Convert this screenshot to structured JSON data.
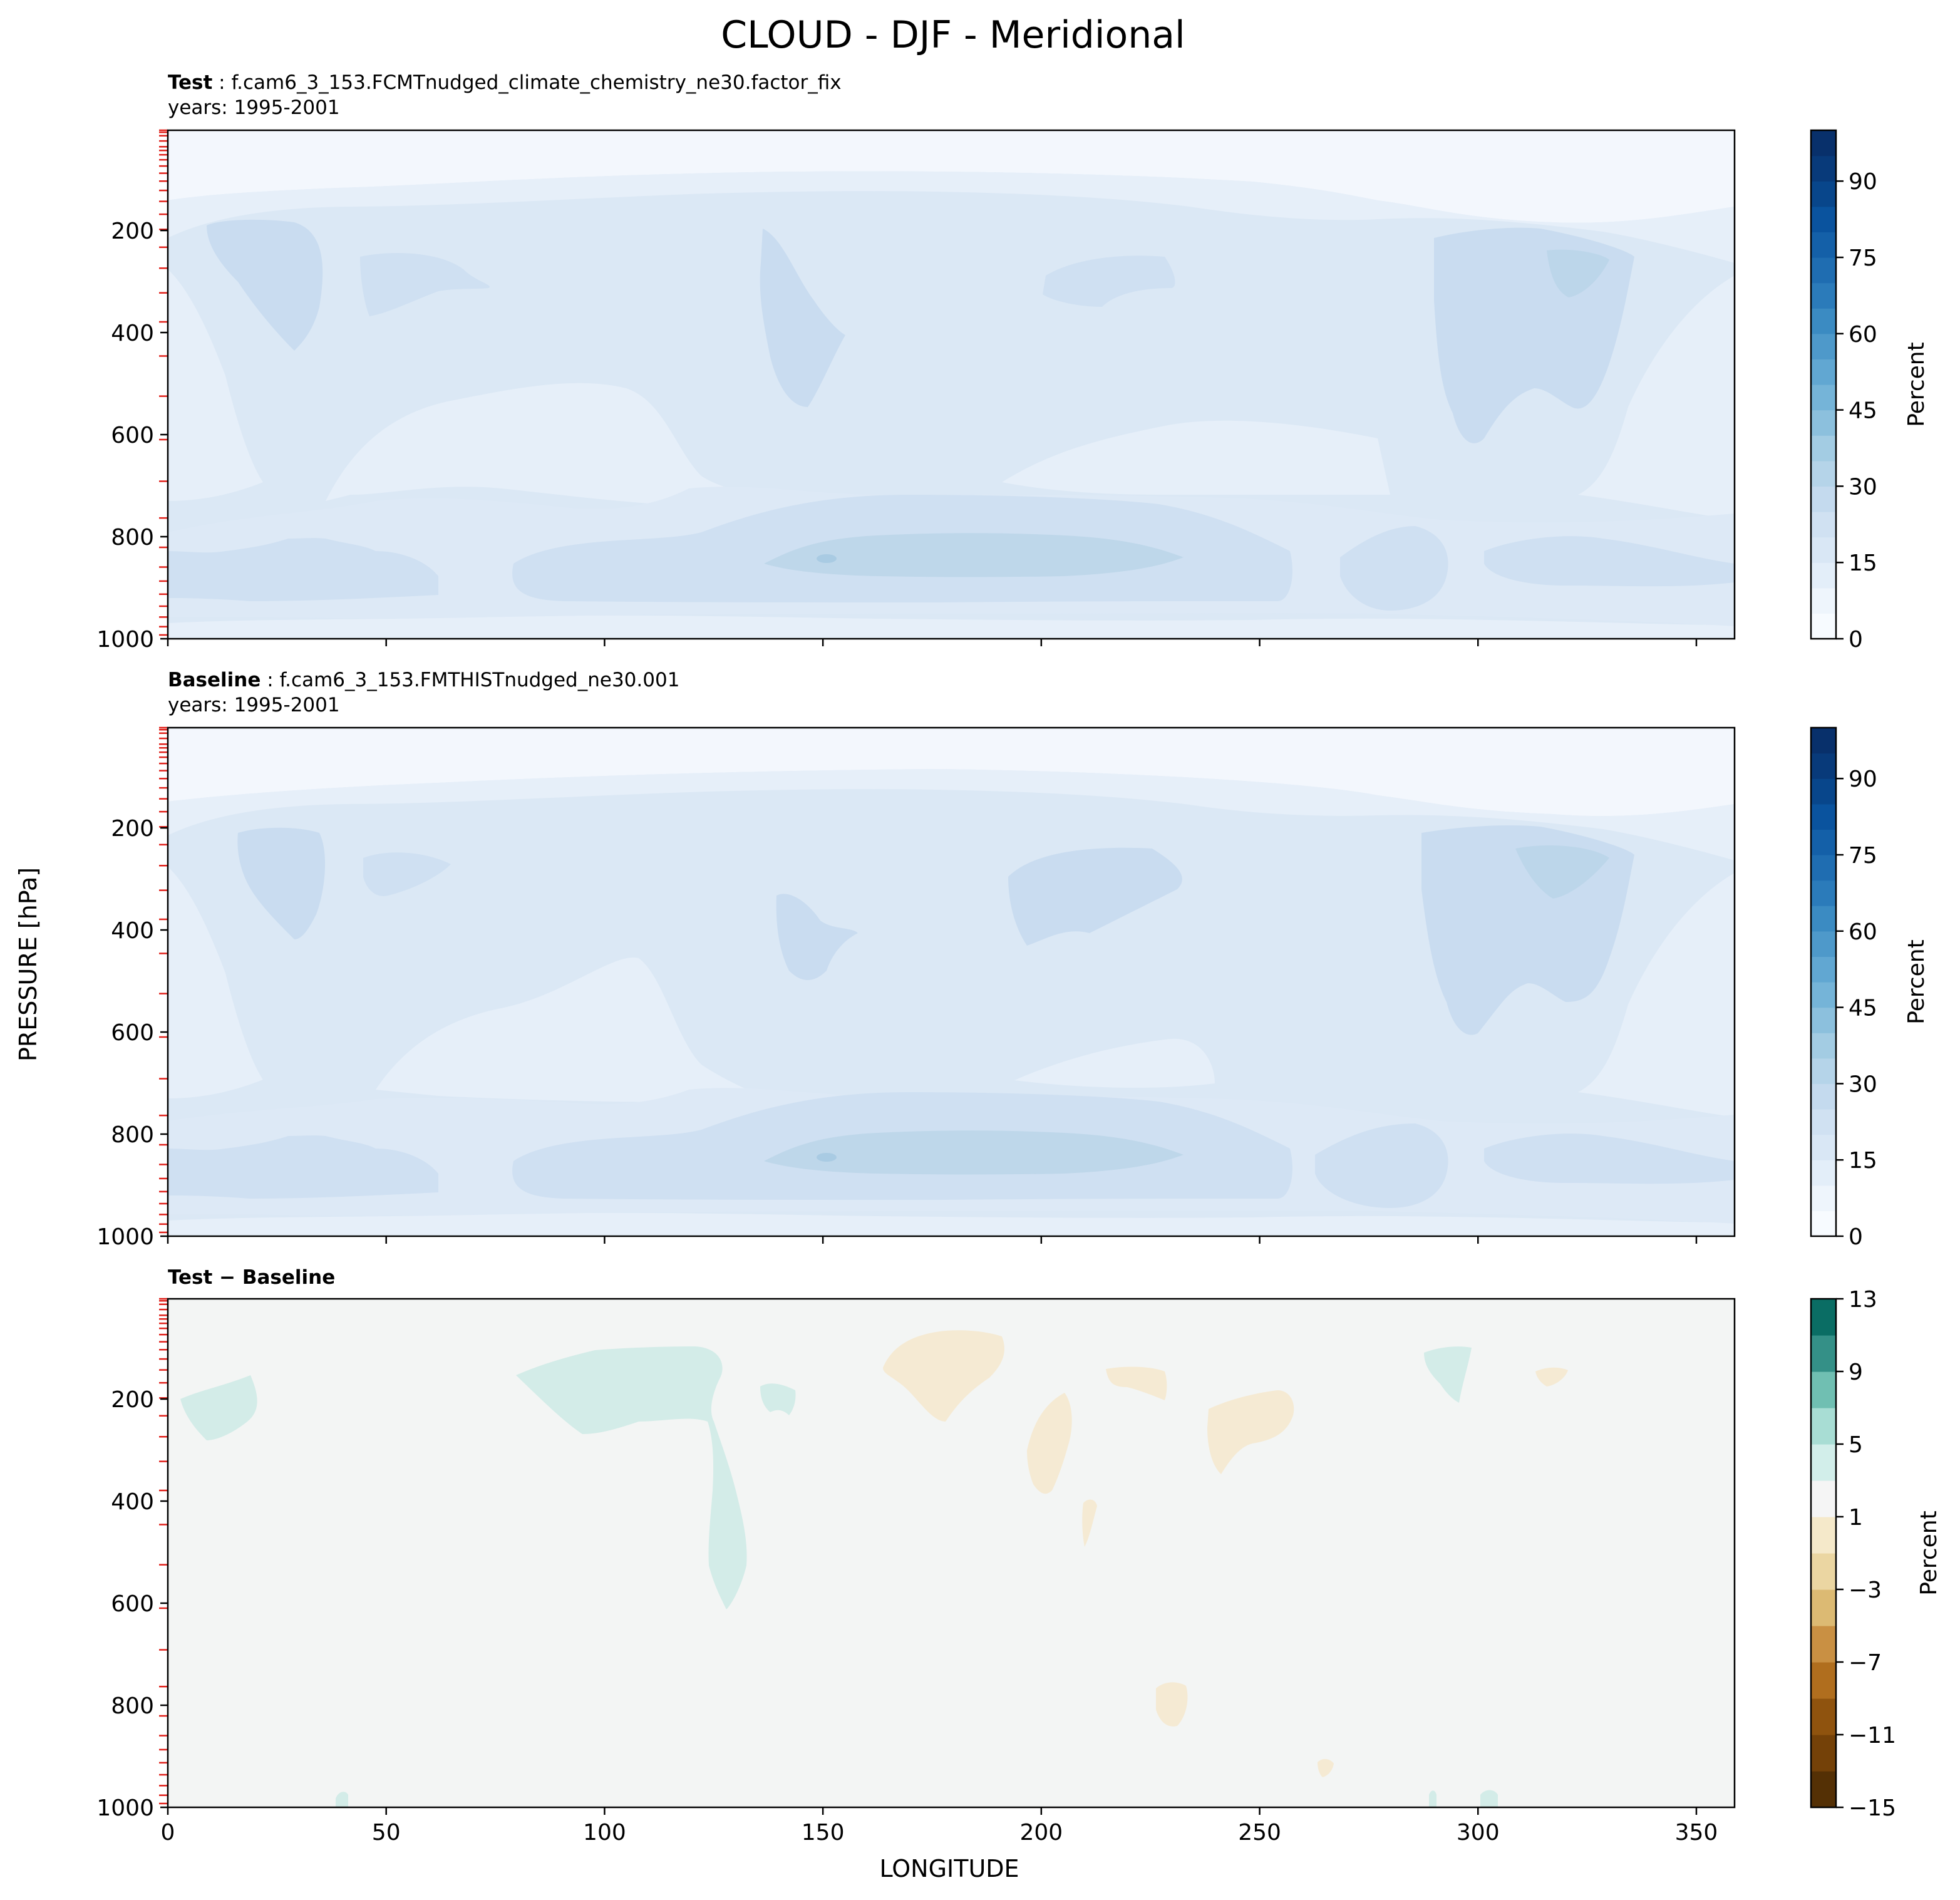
{
  "figure": {
    "title": "CLOUD - DJF - Meridional",
    "ylabel": "PRESSURE [hPa]",
    "xlabel": "LONGITUDE"
  },
  "colors": {
    "blues": [
      "#f7fbff",
      "#eef5fc",
      "#e3eef9",
      "#d9e7f5",
      "#d0e1f2",
      "#c4daee",
      "#b5d4e9",
      "#a3cce3",
      "#8cc0dd",
      "#75b4d8",
      "#61a7d2",
      "#4e99ca",
      "#3b8bc2",
      "#2b7bba",
      "#1f6db1",
      "#1460a8",
      "#0a539e",
      "#08468b",
      "#083a7a",
      "#08306b"
    ],
    "diverging": [
      "#543005",
      "#744108",
      "#8f530e",
      "#b06e1e",
      "#c99043",
      "#dcba73",
      "#ebd6a2",
      "#f5e9ca",
      "#f5f5f5",
      "#d2eeea",
      "#a8ddd4",
      "#70bfb2",
      "#349087",
      "#0a6d64",
      "#01493f"
    ],
    "field_light": "#f3f7fd",
    "field_mid": "#dae7f4",
    "field_dark": "#c9dcf0",
    "field_darkest": "#b6d3e7",
    "diff_bg": "#f3f5f4",
    "diff_pos": "#d3ece8",
    "diff_neg": "#f5ead3",
    "level_marker": "#e0201a"
  },
  "panels": [
    {
      "id": "test",
      "label_bold": "Test",
      "label_rest": " : f.cam6_3_153.FCMTnudged_climate_chemistry_ne30.factor_fix",
      "years": "years: 1995-2001",
      "colorbar_label": "Percent",
      "colorbar_ticks": [
        "0",
        "15",
        "30",
        "45",
        "60",
        "75",
        "90"
      ]
    },
    {
      "id": "baseline",
      "label_bold": "Baseline",
      "label_rest": " : f.cam6_3_153.FMTHISTnudged_ne30.001",
      "years": "years: 1995-2001",
      "colorbar_label": "Percent",
      "colorbar_ticks": [
        "0",
        "15",
        "30",
        "45",
        "60",
        "75",
        "90"
      ]
    },
    {
      "id": "diff",
      "label_bold": "Test − Baseline",
      "colorbar_label": "Percent",
      "colorbar_ticks": [
        "−15",
        "−11",
        "−7",
        "−3",
        "1",
        "5",
        "9",
        "13"
      ]
    }
  ],
  "chart_data": [
    {
      "type": "heatmap",
      "name": "Test",
      "x_range": [
        0,
        358.75
      ],
      "y_range": [
        1000,
        3.64
      ],
      "xticks": [
        0,
        50,
        100,
        150,
        200,
        250,
        300,
        350
      ],
      "yticks": [
        200,
        400,
        600,
        800,
        1000
      ],
      "colorbar": {
        "min": 0,
        "max": 100,
        "step": 5,
        "ticks": [
          0,
          15,
          30,
          45,
          60,
          75,
          90
        ]
      },
      "regions": [
        {
          "level": "upper_clear",
          "value_range": [
            0,
            5
          ],
          "lon": [
            0,
            358.75
          ],
          "p": [
            3.64,
            150
          ]
        },
        {
          "level": "upper_tropo_max",
          "value_range": [
            15,
            20
          ],
          "lon": [
            10,
            40
          ],
          "p": [
            190,
            420
          ]
        },
        {
          "level": "upper_tropo_max",
          "value_range": [
            15,
            20
          ],
          "lon": [
            140,
            155
          ],
          "p": [
            190,
            540
          ]
        },
        {
          "level": "upper_tropo_max",
          "value_range": [
            15,
            20
          ],
          "lon": [
            290,
            330
          ],
          "p": [
            190,
            620
          ]
        },
        {
          "level": "low_cloud_max",
          "value_range": [
            20,
            25
          ],
          "lon": [
            140,
            230
          ],
          "p": [
            810,
            900
          ]
        }
      ]
    },
    {
      "type": "heatmap",
      "name": "Baseline",
      "x_range": [
        0,
        358.75
      ],
      "y_range": [
        1000,
        3.64
      ],
      "xticks": [
        0,
        50,
        100,
        150,
        200,
        250,
        300,
        350
      ],
      "yticks": [
        200,
        400,
        600,
        800,
        1000
      ],
      "colorbar": {
        "min": 0,
        "max": 100,
        "step": 5,
        "ticks": [
          0,
          15,
          30,
          45,
          60,
          75,
          90
        ]
      },
      "regions": [
        {
          "level": "upper_clear",
          "value_range": [
            0,
            5
          ],
          "lon": [
            0,
            358.75
          ],
          "p": [
            3.64,
            150
          ]
        },
        {
          "level": "upper_tropo_max",
          "value_range": [
            15,
            20
          ],
          "lon": [
            10,
            40
          ],
          "p": [
            190,
            420
          ]
        },
        {
          "level": "upper_tropo_max",
          "value_range": [
            15,
            20
          ],
          "lon": [
            190,
            240
          ],
          "p": [
            230,
            450
          ]
        },
        {
          "level": "upper_tropo_max",
          "value_range": [
            15,
            20
          ],
          "lon": [
            290,
            330
          ],
          "p": [
            190,
            600
          ]
        },
        {
          "level": "low_cloud_max",
          "value_range": [
            20,
            25
          ],
          "lon": [
            140,
            230
          ],
          "p": [
            810,
            900
          ]
        }
      ]
    },
    {
      "type": "heatmap",
      "name": "Test − Baseline",
      "x_range": [
        0,
        358.75
      ],
      "y_range": [
        1000,
        3.64
      ],
      "xticks": [
        0,
        50,
        100,
        150,
        200,
        250,
        300,
        350
      ],
      "yticks": [
        200,
        400,
        600,
        800,
        1000
      ],
      "colorbar": {
        "min": -15,
        "max": 13,
        "step": 2,
        "ticks": [
          -15,
          -11,
          -7,
          -3,
          1,
          5,
          9,
          13
        ]
      },
      "regions": [
        {
          "sign": "positive",
          "value_range": [
            1,
            3
          ],
          "lon": [
            80,
            128
          ],
          "p": [
            90,
            250
          ]
        },
        {
          "sign": "positive",
          "value_range": [
            1,
            3
          ],
          "lon": [
            124,
            134
          ],
          "p": [
            200,
            560
          ]
        },
        {
          "sign": "positive",
          "value_range": [
            1,
            3
          ],
          "lon": [
            2,
            22
          ],
          "p": [
            150,
            250
          ]
        },
        {
          "sign": "positive",
          "value_range": [
            1,
            3
          ],
          "lon": [
            288,
            298
          ],
          "p": [
            90,
            220
          ]
        },
        {
          "sign": "negative",
          "value_range": [
            -1,
            -3
          ],
          "lon": [
            164,
            192
          ],
          "p": [
            80,
            250
          ]
        },
        {
          "sign": "negative",
          "value_range": [
            -1,
            -3
          ],
          "lon": [
            198,
            210
          ],
          "p": [
            170,
            390
          ]
        },
        {
          "sign": "negative",
          "value_range": [
            -1,
            -3
          ],
          "lon": [
            240,
            260
          ],
          "p": [
            180,
            330
          ]
        },
        {
          "sign": "negative",
          "value_range": [
            -1,
            -3
          ],
          "lon": [
            226,
            234
          ],
          "p": [
            810,
            870
          ]
        }
      ]
    }
  ]
}
